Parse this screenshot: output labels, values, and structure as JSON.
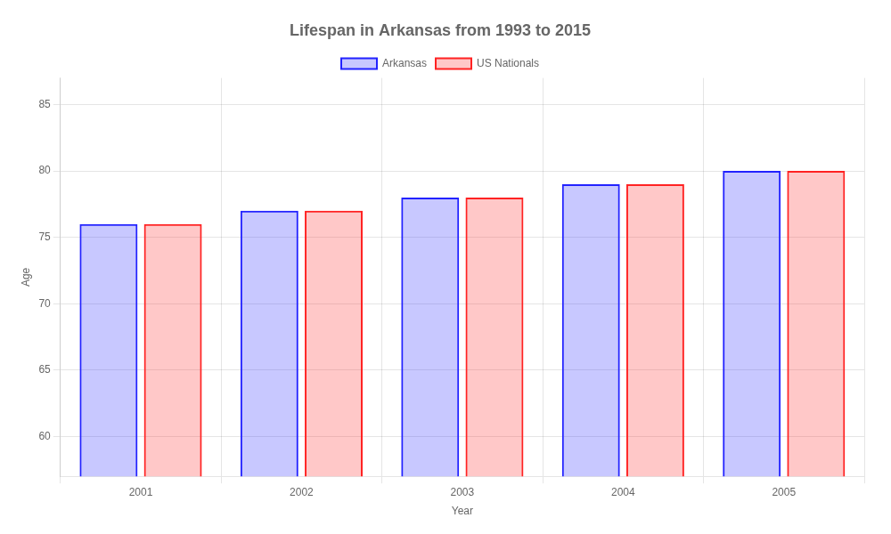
{
  "chart_data": {
    "type": "bar",
    "title": "Lifespan in Arkansas from 1993 to 2015",
    "xlabel": "Year",
    "ylabel": "Age",
    "categories": [
      "2001",
      "2002",
      "2003",
      "2004",
      "2005"
    ],
    "series": [
      {
        "name": "Arkansas",
        "color": "#2222ff",
        "values": [
          76.0,
          77.0,
          78.0,
          79.0,
          80.0
        ]
      },
      {
        "name": "US Nationals",
        "color": "#ff2222",
        "values": [
          76.0,
          77.0,
          78.0,
          79.0,
          80.0
        ]
      }
    ],
    "ylim": [
      57,
      87
    ],
    "yticks": [
      60,
      65,
      70,
      75,
      80,
      85
    ],
    "grid": true,
    "legend": "top"
  }
}
